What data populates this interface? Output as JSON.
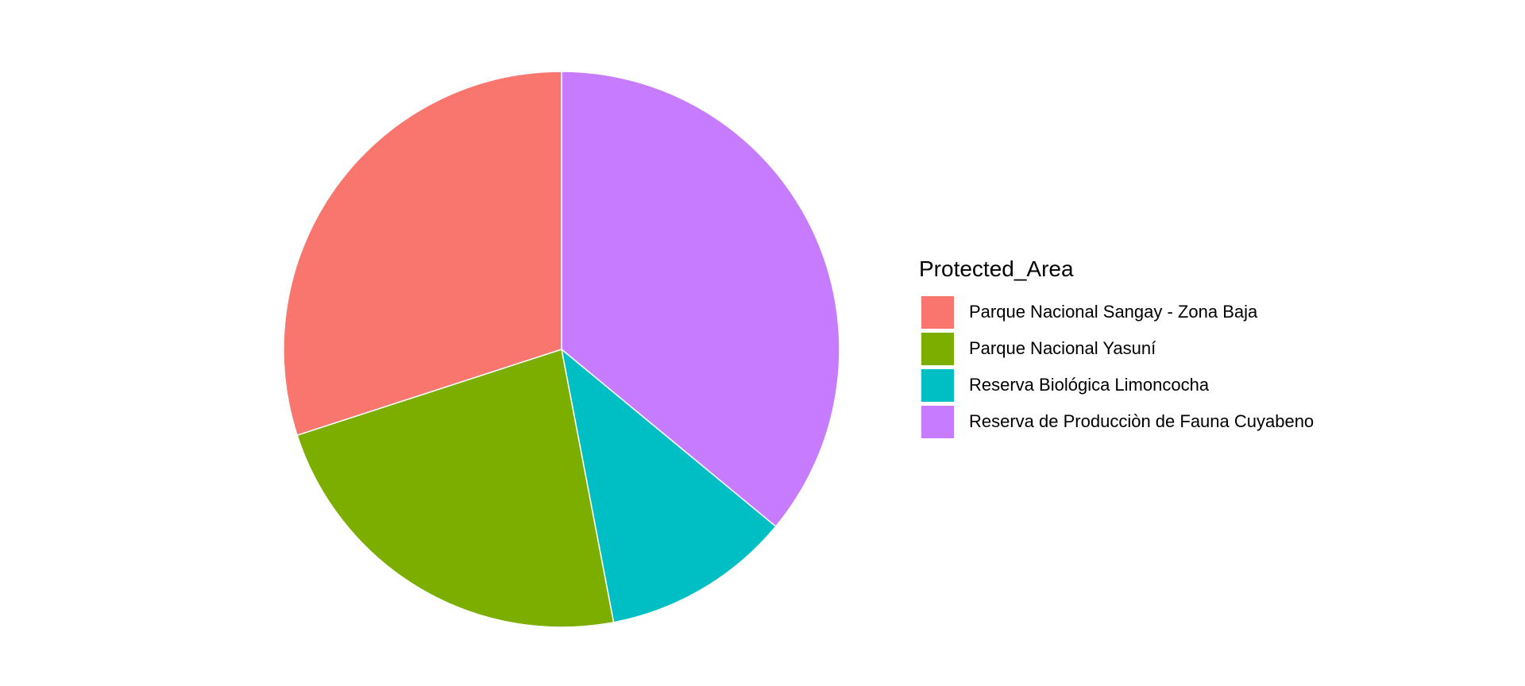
{
  "chart_data": {
    "type": "pie",
    "title": "",
    "legend_title": "Protected_Area",
    "legend_position": "right",
    "start_angle": "12 o'clock",
    "direction": "clockwise",
    "categories": [
      "Reserva de Producciòn de Fauna Cuyabeno",
      "Reserva Biológica Limoncocha",
      "Parque Nacional Yasuní",
      "Parque Nacional Sangay - Zona Baja"
    ],
    "values": [
      36,
      11,
      23,
      30
    ],
    "colors": [
      "#C77CFF",
      "#00BFC4",
      "#7CAE00",
      "#F8766D"
    ],
    "slice_border_color": "#FFFFFF",
    "legend_items": [
      {
        "label": "Parque Nacional Sangay - Zona Baja",
        "color": "#F8766D"
      },
      {
        "label": "Parque Nacional Yasuní",
        "color": "#7CAE00"
      },
      {
        "label": "Reserva Biológica Limoncocha",
        "color": "#00BFC4"
      },
      {
        "label": "Reserva de Producciòn de Fauna Cuyabeno",
        "color": "#C77CFF"
      }
    ]
  }
}
